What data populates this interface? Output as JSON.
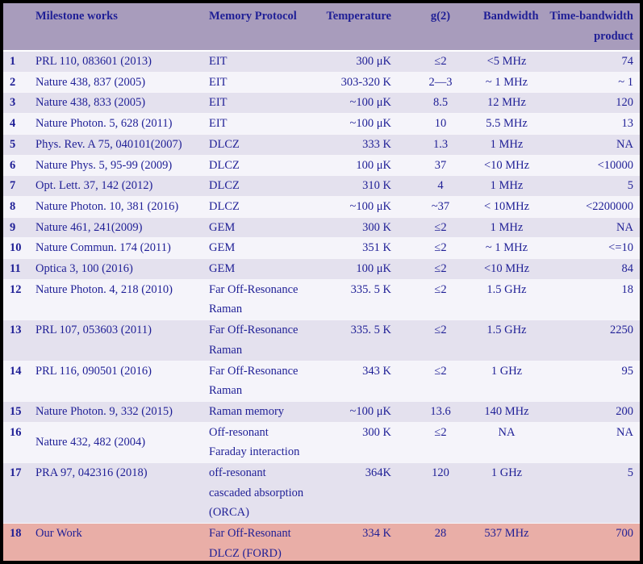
{
  "colors": {
    "frame": "#000000",
    "header_bg": "#a89cbc",
    "row_lavender": "#e4e1ee",
    "row_light": "#f5f4fa",
    "row_highlight_pink": "#e9aea7",
    "text_navy": "#1f1f96"
  },
  "table": {
    "headers": {
      "index": "",
      "milestone": "Milestone works",
      "protocol": "Memory Protocol",
      "temperature": "Temperature",
      "g2": "g(2)",
      "bandwidth": "Bandwidth",
      "tbp_line1": "Time-bandwidth",
      "tbp_line2": "product"
    },
    "rows": [
      {
        "index": "1",
        "milestone": [
          "PRL 110, 083601 (2013)"
        ],
        "protocol": [
          "EIT"
        ],
        "temperature": "300 μK",
        "g2": "≤2",
        "bandwidth": "<5 MHz",
        "tbp": "74",
        "bg": "lav"
      },
      {
        "index": "2",
        "milestone": [
          "Nature 438, 837 (2005)"
        ],
        "protocol": [
          "EIT"
        ],
        "temperature": "303-320 K",
        "g2": "2—3",
        "bandwidth": "~ 1 MHz",
        "tbp": "~ 1",
        "bg": "light"
      },
      {
        "index": "3",
        "milestone": [
          "Nature 438, 833 (2005)"
        ],
        "protocol": [
          "EIT"
        ],
        "temperature": "~100 μK",
        "g2": "8.5",
        "bandwidth": "12 MHz",
        "tbp": "120",
        "bg": "lav"
      },
      {
        "index": "4",
        "milestone": [
          "Nature Photon. 5, 628 (2011)"
        ],
        "protocol": [
          "EIT"
        ],
        "temperature": "~100 μK",
        "g2": "10",
        "bandwidth": "5.5 MHz",
        "tbp": "13",
        "bg": "light"
      },
      {
        "index": "5",
        "milestone": [
          "Phys. Rev. A 75, 040101(2007)"
        ],
        "protocol": [
          "DLCZ"
        ],
        "temperature": "333 K",
        "g2": "1.3",
        "bandwidth": "1 MHz",
        "tbp": "NA",
        "bg": "lav"
      },
      {
        "index": "6",
        "milestone": [
          "Nature Phys. 5, 95-99 (2009)"
        ],
        "protocol": [
          "DLCZ"
        ],
        "temperature": "100 μK",
        "g2": "37",
        "bandwidth": "<10 MHz",
        "tbp": "<10000",
        "bg": "light"
      },
      {
        "index": "7",
        "milestone": [
          "Opt. Lett. 37, 142 (2012)"
        ],
        "protocol": [
          "DLCZ"
        ],
        "temperature": "310 K",
        "g2": "4",
        "bandwidth": "1 MHz",
        "tbp": "5",
        "bg": "lav"
      },
      {
        "index": "8",
        "milestone": [
          "Nature Photon. 10, 381 (2016)"
        ],
        "protocol": [
          "DLCZ"
        ],
        "temperature": "~100 μK",
        "g2": "~37",
        "bandwidth": "< 10MHz",
        "tbp": "<2200000",
        "bg": "light"
      },
      {
        "index": "9",
        "milestone": [
          "Nature 461, 241(2009)"
        ],
        "protocol": [
          "GEM"
        ],
        "temperature": "300 K",
        "g2": "≤2",
        "bandwidth": "1 MHz",
        "tbp": "NA",
        "bg": "lav"
      },
      {
        "index": "10",
        "milestone": [
          "Nature Commun. 174 (2011)"
        ],
        "protocol": [
          "GEM"
        ],
        "temperature": "351 K",
        "g2": "≤2",
        "bandwidth": "~ 1 MHz",
        "tbp": "<=10",
        "bg": "light"
      },
      {
        "index": "11",
        "milestone": [
          "Optica 3, 100 (2016)"
        ],
        "protocol": [
          "GEM"
        ],
        "temperature": "100 μK",
        "g2": "≤2",
        "bandwidth": "<10 MHz",
        "tbp": "84",
        "bg": "lav"
      },
      {
        "index": "12",
        "milestone": [
          "Nature Photon. 4, 218 (2010)"
        ],
        "protocol": [
          "Far Off-Resonance",
          "Raman"
        ],
        "temperature": "335. 5 K",
        "g2": "≤2",
        "bandwidth": "1.5 GHz",
        "tbp": "18",
        "bg": "light"
      },
      {
        "index": "13",
        "milestone": [
          "PRL 107, 053603 (2011)"
        ],
        "protocol": [
          "Far Off-Resonance",
          "Raman"
        ],
        "temperature": "335. 5 K",
        "g2": "≤2",
        "bandwidth": "1.5 GHz",
        "tbp": "2250",
        "bg": "lav"
      },
      {
        "index": "14",
        "milestone": [
          "PRL 116, 090501 (2016)"
        ],
        "protocol": [
          "Far Off-Resonance",
          "Raman"
        ],
        "temperature": "343 K",
        "g2": "≤2",
        "bandwidth": "1 GHz",
        "tbp": "95",
        "bg": "light"
      },
      {
        "index": "15",
        "milestone": [
          "Nature Photon. 9, 332 (2015)"
        ],
        "protocol": [
          "Raman memory"
        ],
        "temperature": "~100 μK",
        "g2": "13.6",
        "bandwidth": "140 MHz",
        "tbp": "200",
        "bg": "lav"
      },
      {
        "index": "16",
        "milestone": [
          "Nature 432, 482 (2004)"
        ],
        "protocol": [
          "Off-resonant",
          "Faraday interaction"
        ],
        "temperature": "300 K",
        "g2": "≤2",
        "bandwidth": "NA",
        "tbp": "NA",
        "bg": "light",
        "milestone_middle": true
      },
      {
        "index": "17",
        "milestone": [
          "PRA 97, 042316 (2018)"
        ],
        "protocol": [
          "off-resonant",
          "cascaded absorption",
          "(ORCA)"
        ],
        "temperature": "364K",
        "g2": "120",
        "bandwidth": "1  GHz",
        "tbp": "5",
        "bg": "lav"
      },
      {
        "index": "18",
        "milestone": [
          "Our Work"
        ],
        "protocol": [
          "Far Off-Resonant",
          "DLCZ (FORD)"
        ],
        "temperature": "334 K",
        "g2": "28",
        "bandwidth": "537 MHz",
        "tbp": "700",
        "bg": "pink"
      }
    ]
  }
}
